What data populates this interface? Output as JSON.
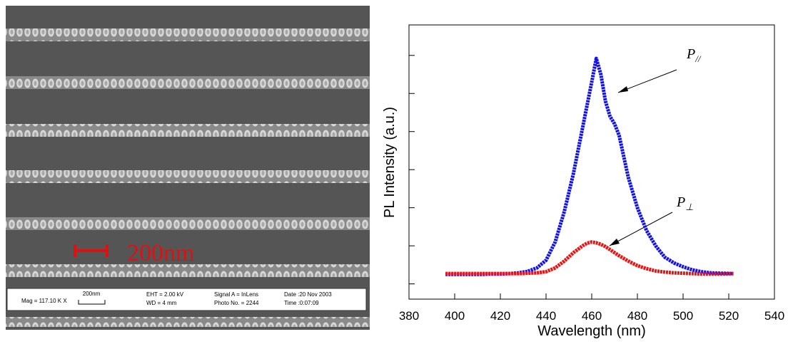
{
  "sem_image": {
    "scale_bar": "200nm",
    "info_bar": {
      "mag": "Mag = 117.10 K X",
      "scale": "200nm",
      "eht": "EHT = 2.00 kV",
      "wd": "WD =   4 mm",
      "signal": "Signal A = InLens",
      "photo": "Photo No. = 2244",
      "date": "Date :20 Nov 2003",
      "time": "Time :0:07:09"
    }
  },
  "chart_data": {
    "type": "line",
    "xlabel": "Wavelength (nm)",
    "ylabel": "PL Intensity (a.u.)",
    "x": [
      396,
      400,
      404,
      408,
      412,
      416,
      420,
      424,
      428,
      432,
      436,
      440,
      444,
      448,
      452,
      456,
      458,
      460,
      462,
      464,
      466,
      468,
      470,
      472,
      476,
      480,
      484,
      488,
      492,
      496,
      500,
      504,
      508,
      512,
      516,
      522
    ],
    "series": [
      {
        "color": "#1010f0",
        "values": [
          0.25,
          0.25,
          0.25,
          0.25,
          0.25,
          0.26,
          0.26,
          0.27,
          0.29,
          0.33,
          0.42,
          0.62,
          1.1,
          1.9,
          2.9,
          4.1,
          4.7,
          5.3,
          5.92,
          5.5,
          4.8,
          4.4,
          4.2,
          3.9,
          2.8,
          2.0,
          1.4,
          1.0,
          0.7,
          0.55,
          0.45,
          0.37,
          0.32,
          0.29,
          0.28,
          0.27
        ]
      },
      {
        "color": "#f01010",
        "values": [
          0.27,
          0.27,
          0.27,
          0.27,
          0.27,
          0.27,
          0.27,
          0.27,
          0.27,
          0.28,
          0.29,
          0.32,
          0.42,
          0.6,
          0.82,
          1.0,
          1.07,
          1.1,
          1.08,
          1.04,
          0.98,
          0.9,
          0.82,
          0.74,
          0.6,
          0.48,
          0.4,
          0.34,
          0.31,
          0.29,
          0.28,
          0.27,
          0.26,
          0.26,
          0.26,
          0.27
        ]
      }
    ],
    "annotations": [
      {
        "text": "P",
        "subscript": "//"
      },
      {
        "text": "P",
        "subscript": "⊥"
      }
    ],
    "xlim": [
      380,
      540
    ],
    "xticks": [
      380,
      400,
      420,
      440,
      460,
      480,
      500,
      520,
      540
    ],
    "ylim": [
      -0.4,
      6.8
    ],
    "yticks": [
      0,
      1,
      2,
      3,
      4,
      5,
      6
    ]
  }
}
